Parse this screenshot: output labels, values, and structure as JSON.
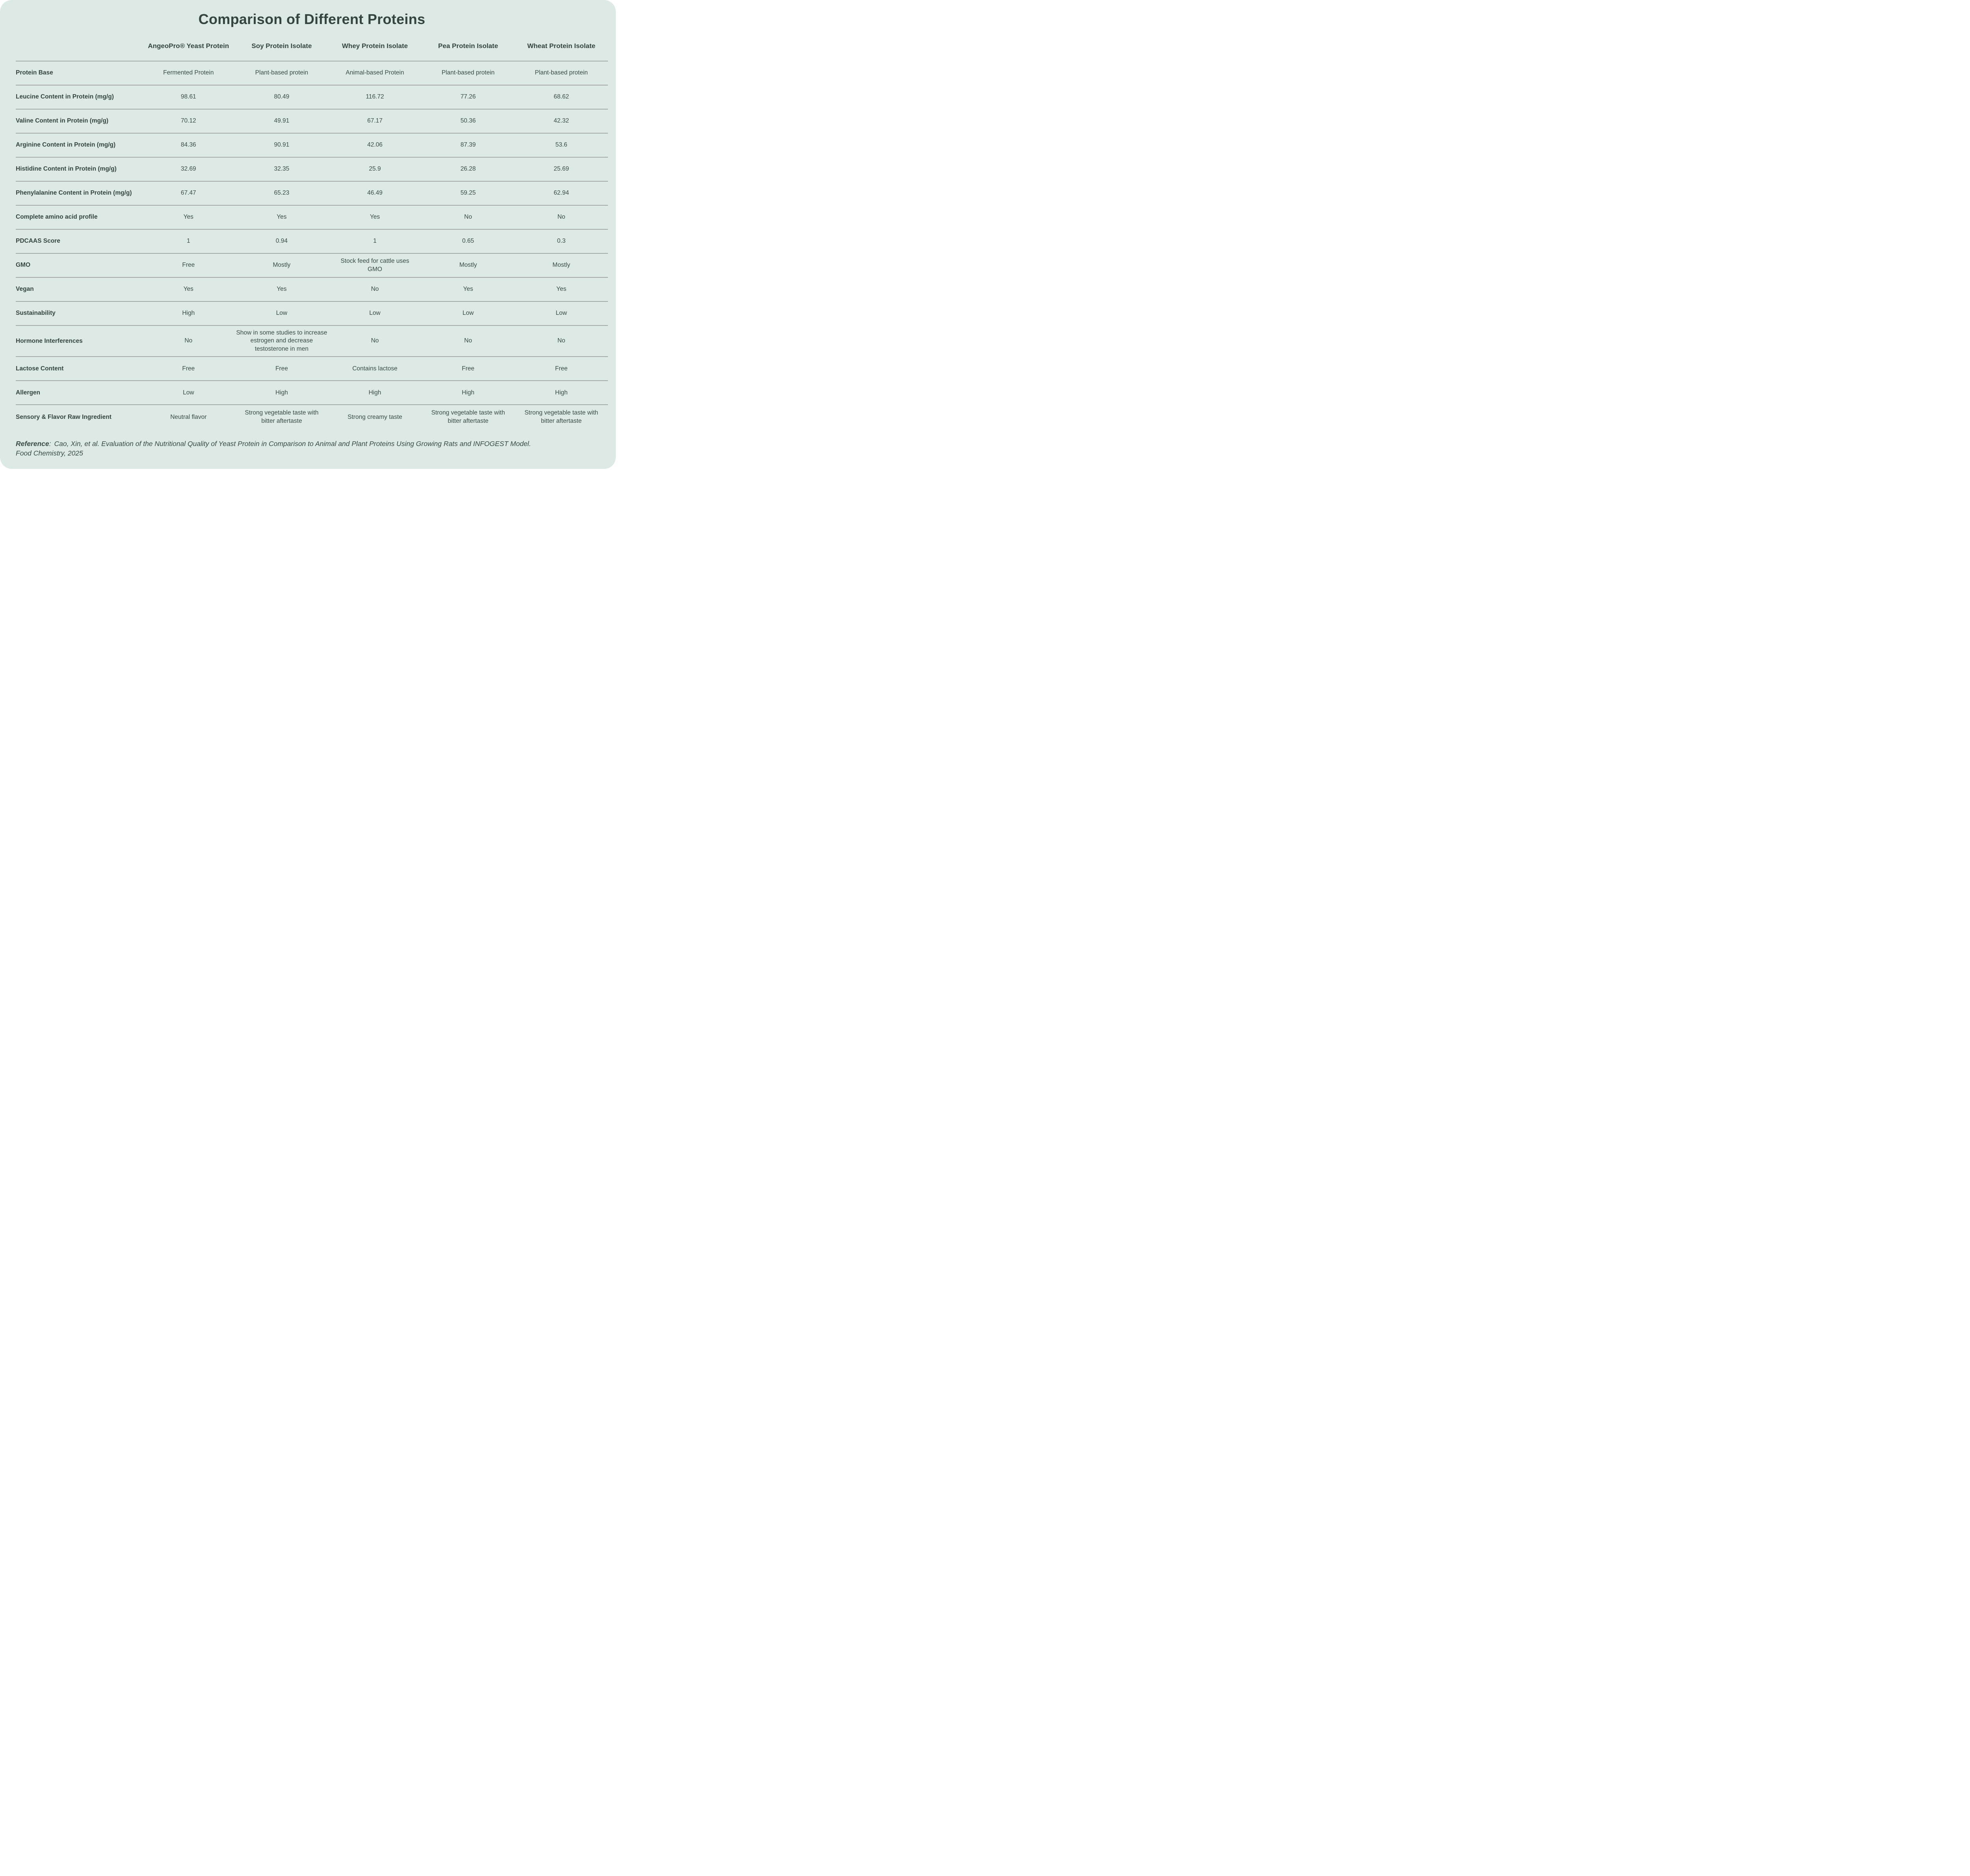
{
  "title": "Comparison of Different Proteins",
  "table": {
    "columns": [
      "AngeoPro® Yeast Protein",
      "Soy Protein Isolate",
      "Whey Protein Isolate",
      "Pea Protein Isolate",
      "Wheat Protein Isolate"
    ],
    "rows": [
      {
        "label": "Protein Base",
        "values": [
          "Fermented Protein",
          "Plant-based protein",
          "Animal-based Protein",
          "Plant-based protein",
          "Plant-based protein"
        ]
      },
      {
        "label": "Leucine Content in Protein (mg/g)",
        "values": [
          "98.61",
          "80.49",
          "116.72",
          "77.26",
          "68.62"
        ]
      },
      {
        "label": "Valine Content in Protein (mg/g)",
        "values": [
          "70.12",
          "49.91",
          "67.17",
          "50.36",
          "42.32"
        ]
      },
      {
        "label": "Arginine Content in Protein (mg/g)",
        "values": [
          "84.36",
          "90.91",
          "42.06",
          "87.39",
          "53.6"
        ]
      },
      {
        "label": "Histidine Content in Protein (mg/g)",
        "values": [
          "32.69",
          "32.35",
          "25.9",
          "26.28",
          "25.69"
        ]
      },
      {
        "label": "Phenylalanine Content in Protein (mg/g)",
        "values": [
          "67.47",
          "65.23",
          "46.49",
          "59.25",
          "62.94"
        ]
      },
      {
        "label": "Complete amino acid profile",
        "values": [
          "Yes",
          "Yes",
          "Yes",
          "No",
          "No"
        ]
      },
      {
        "label": "PDCAAS Score",
        "values": [
          "1",
          "0.94",
          "1",
          "0.65",
          "0.3"
        ]
      },
      {
        "label": "GMO",
        "values": [
          "Free",
          "Mostly",
          "Stock feed for cattle uses GMO",
          "Mostly",
          "Mostly"
        ]
      },
      {
        "label": "Vegan",
        "values": [
          "Yes",
          "Yes",
          "No",
          "Yes",
          "Yes"
        ]
      },
      {
        "label": "Sustainability",
        "values": [
          "High",
          "Low",
          "Low",
          "Low",
          "Low"
        ]
      },
      {
        "label": "Hormone Interferences",
        "values": [
          "No",
          "Show in some studies to increase estrogen and decrease testosterone in men",
          "No",
          "No",
          "No"
        ]
      },
      {
        "label": "Lactose Content",
        "values": [
          "Free",
          "Free",
          "Contains lactose",
          "Free",
          "Free"
        ]
      },
      {
        "label": "Allergen",
        "values": [
          "Low",
          "High",
          "High",
          "High",
          "High"
        ]
      },
      {
        "label": "Sensory & Flavor Raw Ingredient",
        "values": [
          "Neutral flavor",
          "Strong vegetable taste with bitter aftertaste",
          "Strong creamy taste",
          "Strong vegetable taste with bitter aftertaste",
          "Strong vegetable taste with bitter aftertaste"
        ]
      }
    ]
  },
  "reference": {
    "label": "Reference",
    "separator": ":",
    "line1": "Cao, Xin, et al. Evaluation of the Nutritional Quality of Yeast Protein in Comparison to Animal and Plant Proteins Using Growing Rats and INFOGEST Model.",
    "line2": "Food Chemistry, 2025"
  },
  "colors": {
    "card_background": "#dde9e5",
    "page_background": "#ffffff",
    "text": "#3a4a44",
    "heading_text": "#35443e",
    "divider": "#a5a9a8"
  }
}
